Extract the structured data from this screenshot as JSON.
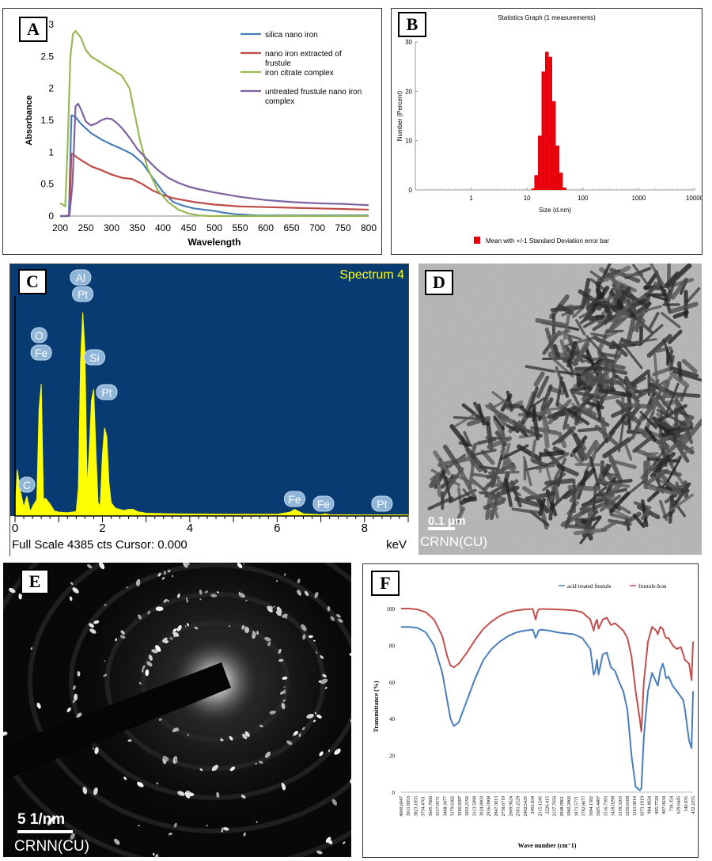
{
  "panels": {
    "A": "A",
    "B": "B",
    "C": "C",
    "D": "D",
    "E": "E",
    "F": "F"
  },
  "chart_data": [
    {
      "id": "A",
      "type": "line",
      "xlabel": "Wavelength",
      "ylabel": "Absorbance",
      "xlim": [
        200,
        800
      ],
      "ylim": [
        0,
        3
      ],
      "xticks": [
        200,
        250,
        300,
        350,
        400,
        450,
        500,
        550,
        600,
        650,
        700,
        750,
        800
      ],
      "yticks": [
        0,
        0.5,
        1,
        1.5,
        2,
        2.5,
        3
      ],
      "legend_position": "top-right",
      "series": [
        {
          "name": "silica nano iron",
          "color": "#4a7ebb",
          "x": [
            200,
            210,
            217,
            222,
            230,
            240,
            260,
            280,
            300,
            320,
            340,
            360,
            380,
            400,
            420,
            440,
            460,
            480,
            500,
            520,
            540,
            560,
            580,
            600,
            650,
            700,
            750,
            800
          ],
          "y": [
            0,
            0,
            0,
            1.58,
            1.55,
            1.45,
            1.3,
            1.2,
            1.12,
            1.05,
            0.97,
            0.83,
            0.6,
            0.38,
            0.22,
            0.16,
            0.12,
            0.1,
            0.08,
            0.05,
            0.03,
            0.02,
            0.01,
            0.01,
            0.01,
            0.01,
            0.01,
            0.01
          ]
        },
        {
          "name": "nano iron extracted of  frustule",
          "color": "#be4b48",
          "x": [
            200,
            212,
            218,
            222,
            240,
            260,
            280,
            300,
            320,
            340,
            360,
            380,
            400,
            420,
            440,
            460,
            480,
            500,
            550,
            600,
            650,
            700,
            750,
            800
          ],
          "y": [
            0,
            0,
            0.02,
            0.98,
            0.88,
            0.78,
            0.72,
            0.65,
            0.6,
            0.58,
            0.5,
            0.4,
            0.33,
            0.28,
            0.25,
            0.22,
            0.2,
            0.18,
            0.15,
            0.14,
            0.13,
            0.12,
            0.11,
            0.1
          ]
        },
        {
          "name": "iron citrate complex",
          "color": "#98b954",
          "x": [
            200,
            205,
            210,
            215,
            220,
            225,
            230,
            240,
            250,
            260,
            280,
            300,
            320,
            335,
            345,
            355,
            370,
            390,
            410,
            430,
            450,
            470,
            490,
            510,
            550,
            600,
            650,
            700,
            750,
            800
          ],
          "y": [
            0.2,
            0.18,
            0.15,
            1.2,
            2.5,
            2.85,
            2.9,
            2.8,
            2.6,
            2.5,
            2.4,
            2.3,
            2.2,
            2.0,
            1.6,
            1.2,
            0.75,
            0.4,
            0.22,
            0.1,
            0.04,
            0.01,
            0,
            0,
            0,
            0,
            0,
            0,
            0,
            0
          ]
        },
        {
          "name": "untreated frustule nano iron complex",
          "color": "#7d60a0",
          "x": [
            200,
            218,
            224,
            230,
            235,
            240,
            250,
            260,
            270,
            280,
            290,
            300,
            310,
            320,
            330,
            340,
            350,
            370,
            390,
            410,
            430,
            450,
            470,
            500,
            550,
            600,
            650,
            700,
            750,
            800
          ],
          "y": [
            0,
            0,
            0.5,
            1.72,
            1.76,
            1.68,
            1.48,
            1.42,
            1.45,
            1.5,
            1.53,
            1.52,
            1.46,
            1.38,
            1.28,
            1.17,
            1.05,
            0.88,
            0.72,
            0.6,
            0.52,
            0.46,
            0.42,
            0.37,
            0.3,
            0.25,
            0.22,
            0.2,
            0.19,
            0.17
          ]
        }
      ]
    },
    {
      "id": "B",
      "type": "bar",
      "title": "Statistics Graph (1 measurements)",
      "xlabel": "Size (d.nm)",
      "ylabel": "Number (Percent)",
      "xscale": "log",
      "xlim": [
        0.1,
        10000
      ],
      "ylim": [
        0,
        30
      ],
      "xticks": [
        "1",
        "10",
        "100",
        "1000",
        "10000"
      ],
      "yticks": [
        0,
        10,
        20,
        30
      ],
      "legend": "Mean with +/-1 Standard Deviation error bar",
      "color": "#e8000b",
      "bins": [
        12.0,
        13.5,
        15.7,
        18.2,
        21.0,
        24.4,
        28.2,
        32.7,
        37.8,
        43.8
      ],
      "values": [
        0.3,
        3.0,
        11.0,
        24.0,
        28.0,
        27.0,
        18.0,
        9.0,
        3.5,
        0.5
      ]
    },
    {
      "id": "C",
      "type": "line",
      "title": "Spectrum 4",
      "xlabel": "keV",
      "xlim": [
        0,
        9
      ],
      "xticks": [
        0,
        2,
        4,
        6,
        8
      ],
      "footer": "Full Scale 4385 cts Cursor: 0.000",
      "fill": "#ffff00",
      "background": "#083b72",
      "x": [
        0,
        0.05,
        0.12,
        0.2,
        0.27,
        0.35,
        0.42,
        0.5,
        0.55,
        0.6,
        0.65,
        0.7,
        0.8,
        0.9,
        1.0,
        1.2,
        1.4,
        1.45,
        1.5,
        1.55,
        1.6,
        1.65,
        1.7,
        1.75,
        1.8,
        1.85,
        1.9,
        1.95,
        2.0,
        2.05,
        2.1,
        2.15,
        2.2,
        2.3,
        2.5,
        2.6,
        2.7,
        2.8,
        3.0,
        3.5,
        4.0,
        5.0,
        6.0,
        6.3,
        6.4,
        6.5,
        6.6,
        7.0,
        7.1,
        7.2,
        8.0,
        8.5,
        9.0
      ],
      "y": [
        30,
        420,
        230,
        80,
        180,
        40,
        100,
        150,
        970,
        1200,
        150,
        160,
        110,
        45,
        35,
        30,
        40,
        250,
        1400,
        1850,
        1500,
        250,
        600,
        1050,
        1150,
        600,
        120,
        90,
        550,
        800,
        720,
        300,
        120,
        70,
        50,
        60,
        60,
        40,
        25,
        20,
        18,
        15,
        15,
        35,
        60,
        40,
        20,
        12,
        20,
        12,
        10,
        10,
        10
      ],
      "ymax": 2000,
      "peaks": [
        {
          "label": "C",
          "x": 0.27
        },
        {
          "label": "O",
          "x": 0.55
        },
        {
          "label": "Fe",
          "x": 0.6
        },
        {
          "label": "Al",
          "x": 1.5
        },
        {
          "label": "Pt",
          "x": 1.55
        },
        {
          "label": "Si",
          "x": 1.82
        },
        {
          "label": "Pt",
          "x": 2.1
        },
        {
          "label": "Fe",
          "x": 6.4
        },
        {
          "label": "Fe",
          "x": 7.06
        },
        {
          "label": "Pt",
          "x": 8.4
        }
      ]
    },
    {
      "id": "F",
      "type": "line",
      "xlabel": "Wave number (cm⁻1)",
      "ylabel": "Transmittance (%)",
      "ylim": [
        0,
        100
      ],
      "yticks": [
        0,
        20,
        40,
        60,
        80,
        100
      ],
      "xlim": [
        4000.6047,
        452.2255
      ],
      "xticks": [
        "4000.6047",
        "3911.8953",
        "3823.1855",
        "3734.4761",
        "3645.7666",
        "3557.0571",
        "3468.3477",
        "3379.6382",
        "3290.9287",
        "3202.2192",
        "3113.5098",
        "3024.8003",
        "2936.0908",
        "2847.3813",
        "2758.6719",
        "2669.9624",
        "2581.2529",
        "2492.5435",
        "2403.834",
        "2315.1245",
        "2226.415",
        "2137.7056",
        "2048.9961",
        "1960.2866",
        "1871.5771",
        "1782.8677",
        "1694.1582",
        "1605.4487",
        "1516.7393",
        "1428.0298",
        "1339.3203",
        "1250.6108",
        "1161.9014",
        "1073.1919",
        "984.4824",
        "895.7729",
        "807.0634",
        "718.354",
        "629.6445",
        "540.935",
        "452.2255"
      ],
      "legend_position": "top-right",
      "series": [
        {
          "name": "acid treated frustule",
          "color": "#4a7ebb",
          "x": [
            4000,
            3900,
            3800,
            3700,
            3600,
            3500,
            3440,
            3400,
            3360,
            3300,
            3200,
            3100,
            3000,
            2900,
            2800,
            2700,
            2600,
            2500,
            2400,
            2365,
            2345,
            2330,
            2300,
            2200,
            2100,
            2000,
            1900,
            1800,
            1700,
            1660,
            1640,
            1620,
            1600,
            1550,
            1500,
            1450,
            1400,
            1350,
            1300,
            1250,
            1200,
            1150,
            1100,
            1080,
            1050,
            1000,
            950,
            900,
            880,
            850,
            820,
            800,
            780,
            750,
            700,
            650,
            600,
            570,
            550,
            500,
            470,
            452
          ],
          "y": [
            90,
            90,
            89.5,
            87,
            80,
            65,
            50,
            40,
            36,
            38,
            50,
            62,
            72,
            78,
            82,
            85,
            87,
            88,
            88.5,
            84,
            86,
            88,
            88.5,
            88,
            87,
            86.5,
            86,
            84,
            78,
            64,
            66,
            72,
            64,
            75,
            76,
            68,
            66,
            60,
            55,
            45,
            20,
            3,
            1,
            2,
            30,
            55,
            65,
            60,
            58,
            66,
            70,
            67,
            62,
            63,
            58,
            55,
            52,
            50,
            45,
            28,
            24,
            55
          ]
        },
        {
          "name": "frustule-Iron",
          "color": "#c0504d",
          "x": [
            4000,
            3900,
            3800,
            3700,
            3600,
            3500,
            3440,
            3400,
            3360,
            3300,
            3200,
            3100,
            3000,
            2900,
            2800,
            2700,
            2600,
            2500,
            2400,
            2365,
            2345,
            2330,
            2300,
            2200,
            2100,
            2000,
            1900,
            1800,
            1700,
            1660,
            1640,
            1620,
            1600,
            1550,
            1500,
            1450,
            1400,
            1350,
            1300,
            1250,
            1200,
            1150,
            1100,
            1080,
            1050,
            1000,
            950,
            900,
            880,
            850,
            820,
            800,
            780,
            750,
            700,
            650,
            600,
            570,
            550,
            500,
            470,
            452
          ],
          "y": [
            100,
            100,
            99.5,
            98,
            94,
            85,
            74,
            69,
            68,
            70,
            76,
            83,
            89,
            93,
            96,
            98,
            99,
            99.5,
            99.8,
            94,
            98,
            99.5,
            99.8,
            99.7,
            99.5,
            99.3,
            99,
            98,
            94,
            88,
            92,
            94,
            89,
            94,
            95,
            91,
            92,
            90,
            88,
            84,
            74,
            55,
            40,
            33,
            60,
            82,
            90,
            88,
            86,
            90,
            89,
            86,
            84,
            84,
            80,
            78,
            79,
            75,
            72,
            70,
            61,
            82
          ]
        }
      ]
    }
  ],
  "panel_d": {
    "scale_label": "0.1 μm",
    "caption": "CRNN(CU)"
  },
  "panel_e": {
    "scale_label": "5 1/nm",
    "caption": "CRNN(CU)"
  }
}
